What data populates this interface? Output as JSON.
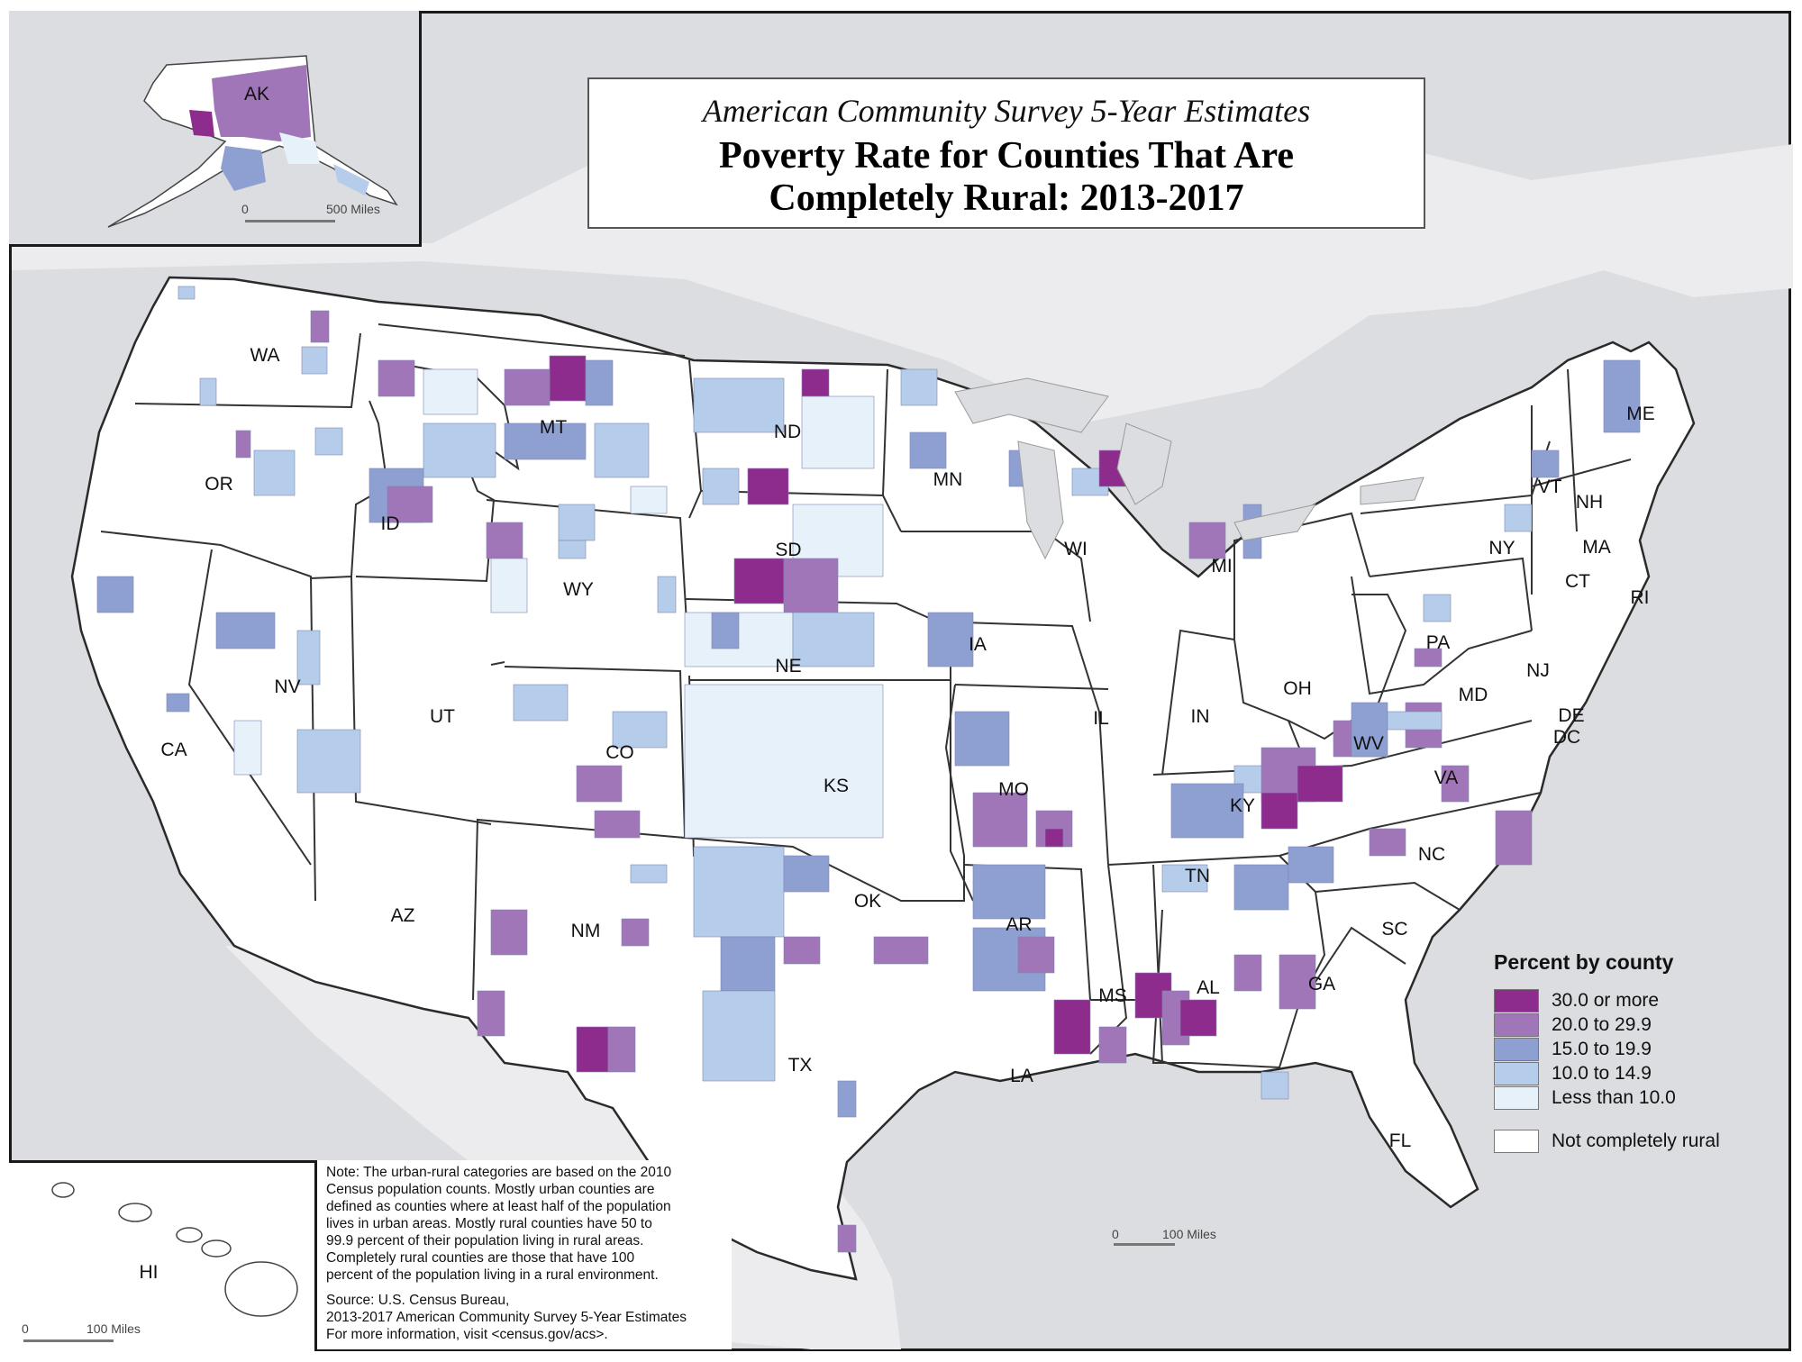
{
  "title": {
    "subtitle": "American Community Survey 5-Year Estimates",
    "main": "Poverty Rate for Counties That Are Completely Rural: 2013-2017"
  },
  "states": [
    "WA",
    "OR",
    "CA",
    "ID",
    "NV",
    "MT",
    "WY",
    "UT",
    "AZ",
    "CO",
    "NM",
    "ND",
    "SD",
    "NE",
    "KS",
    "OK",
    "TX",
    "MN",
    "IA",
    "MO",
    "AR",
    "LA",
    "WI",
    "IL",
    "MI",
    "IN",
    "OH",
    "KY",
    "TN",
    "MS",
    "AL",
    "GA",
    "FL",
    "SC",
    "NC",
    "VA",
    "WV",
    "PA",
    "NY",
    "VT",
    "NH",
    "ME",
    "MA",
    "CT",
    "RI",
    "NJ",
    "DE",
    "MD",
    "DC"
  ],
  "insets": {
    "alaska": {
      "label": "AK",
      "scale_start": "0",
      "scale_end": "500 Miles"
    },
    "hawaii": {
      "label": "HI",
      "scale_start": "0",
      "scale_end": "100 Miles"
    },
    "conus_scale": {
      "scale_start": "0",
      "scale_end": "100 Miles"
    }
  },
  "legend": {
    "title": "Percent by county",
    "items": [
      {
        "label": "30.0 or more",
        "color": "#8e2c8e"
      },
      {
        "label": "20.0 to 29.9",
        "color": "#a176b8"
      },
      {
        "label": "15.0 to 19.9",
        "color": "#8e9fd2"
      },
      {
        "label": "10.0 to 14.9",
        "color": "#b5cdeb"
      },
      {
        "label": "Less than 10.0",
        "color": "#e6f1fa"
      }
    ],
    "not_rural": {
      "label": "Not completely rural",
      "color": "#ffffff"
    }
  },
  "note": "Note: The urban-rural categories are based on the 2010\nCensus population counts. Mostly urban counties are\ndefined as counties where at least half of the population\nlives in urban areas. Mostly rural counties have 50 to\n99.9 percent of their population living in rural areas.\nCompletely rural counties are those that have 100\npercent of the population living in a rural environment.",
  "source": "Source: U.S. Census Bureau,\n2013-2017 American Community Survey 5-Year Estimates\nFor more information, visit <census.gov/acs>.",
  "colors": {
    "land": "#ffffff",
    "water_background": "#dcdde0",
    "border": "#333333"
  }
}
